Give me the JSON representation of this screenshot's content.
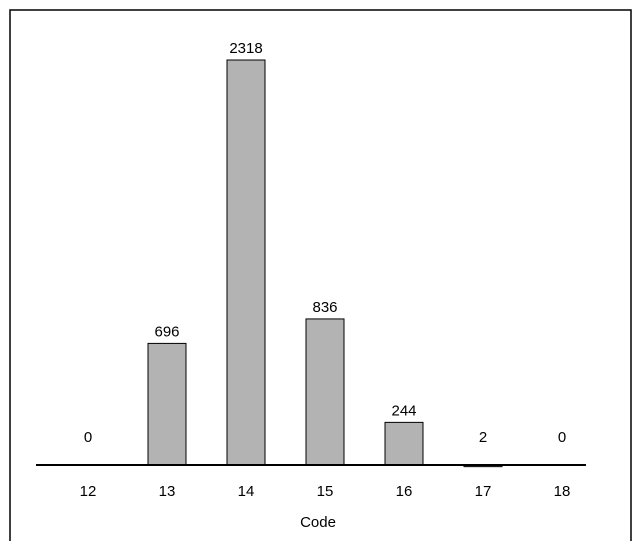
{
  "chart_data": {
    "type": "bar",
    "categories": [
      "12",
      "13",
      "14",
      "15",
      "16",
      "17",
      "18"
    ],
    "values": [
      0,
      696,
      2318,
      836,
      244,
      2,
      0
    ],
    "data_labels": [
      "0",
      "696",
      "2318",
      "836",
      "244",
      "2",
      "0"
    ],
    "title": "",
    "xlabel": "Code",
    "ylabel": "",
    "ylim": [
      0,
      2318
    ],
    "grid": false,
    "legend": "none",
    "colors": {
      "bar_fill": "#b3b3b3",
      "bar_stroke": "#000000",
      "axis": "#000000",
      "frame": "#000000"
    }
  }
}
